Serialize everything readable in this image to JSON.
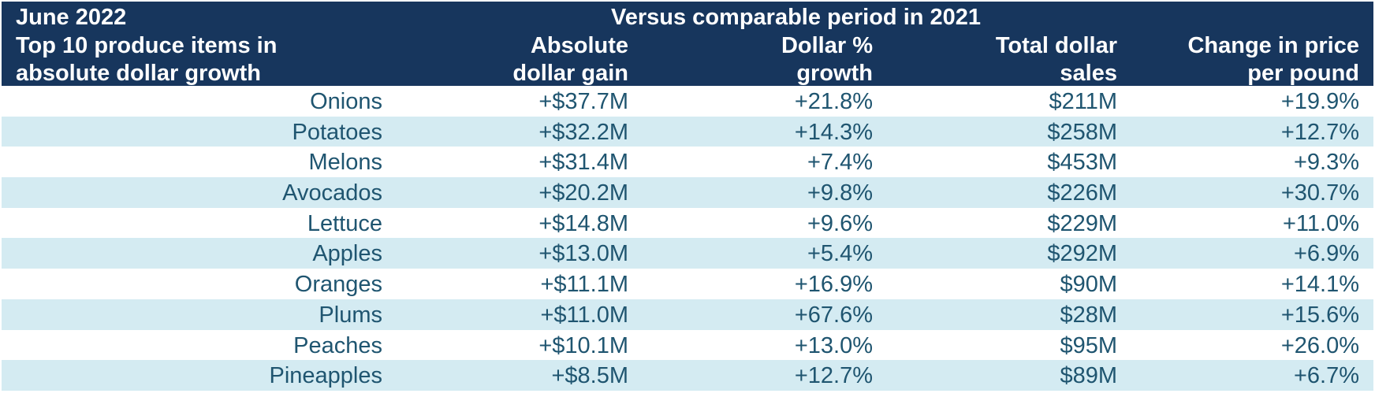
{
  "chart_data": {
    "type": "table",
    "header": {
      "period": "June 2022",
      "comparison": "Versus comparable period in 2021",
      "item_header": "Top 10 produce items in absolute dollar growth",
      "columns": [
        "Absolute dollar gain",
        "Dollar % growth",
        "Total dollar sales",
        "Change in price per pound"
      ]
    },
    "rows": [
      {
        "item": "Onions",
        "gain": "+$37.7M",
        "growth": "+21.8%",
        "sales": "$211M",
        "price_change": "+19.9%"
      },
      {
        "item": "Potatoes",
        "gain": "+$32.2M",
        "growth": "+14.3%",
        "sales": "$258M",
        "price_change": "+12.7%"
      },
      {
        "item": "Melons",
        "gain": "+$31.4M",
        "growth": "+7.4%",
        "sales": "$453M",
        "price_change": "+9.3%"
      },
      {
        "item": "Avocados",
        "gain": "+$20.2M",
        "growth": "+9.8%",
        "sales": "$226M",
        "price_change": "+30.7%"
      },
      {
        "item": "Lettuce",
        "gain": "+$14.8M",
        "growth": "+9.6%",
        "sales": "$229M",
        "price_change": "+11.0%"
      },
      {
        "item": "Apples",
        "gain": "+$13.0M",
        "growth": "+5.4%",
        "sales": "$292M",
        "price_change": "+6.9%"
      },
      {
        "item": "Oranges",
        "gain": "+$11.1M",
        "growth": "+16.9%",
        "sales": "$90M",
        "price_change": "+14.1%"
      },
      {
        "item": "Plums",
        "gain": "+$11.0M",
        "growth": "+67.6%",
        "sales": "$28M",
        "price_change": "+15.6%"
      },
      {
        "item": "Peaches",
        "gain": "+$10.1M",
        "growth": "+13.0%",
        "sales": "$95M",
        "price_change": "+26.0%"
      },
      {
        "item": "Pineapples",
        "gain": "+$8.5M",
        "growth": "+12.7%",
        "sales": "$89M",
        "price_change": "+6.7%"
      }
    ]
  },
  "colors": {
    "header_bg": "#17365d",
    "header_text": "#ffffff",
    "row_text": "#1f5570",
    "stripe_bg": "#d4ebf2"
  }
}
